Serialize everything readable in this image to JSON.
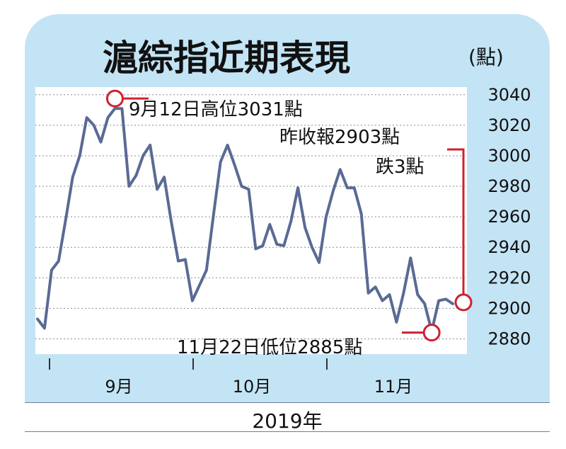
{
  "chart_data": {
    "type": "line",
    "title": "滬綜指近期表現",
    "unit_label": "(點)",
    "year_label": "2019年",
    "x_ticks": [
      "9月",
      "10月",
      "11月"
    ],
    "y_ticks": [
      3040,
      3020,
      3000,
      2980,
      2960,
      2940,
      2920,
      2900,
      2880
    ],
    "ylim": [
      2870,
      3045
    ],
    "grid": "horizontal-dotted",
    "line_color": "#5a6a94",
    "marker_color": "#d0202e",
    "series": [
      {
        "values": [
          2893,
          2887,
          2925,
          2931,
          2958,
          2986,
          3000,
          3025,
          3020,
          3009,
          3025,
          3031,
          3031,
          2980,
          2987,
          3000,
          3007,
          2978,
          2986,
          2957,
          2931,
          2932,
          2905,
          2915,
          2925,
          2961,
          2996,
          3007,
          2994,
          2980,
          2978,
          2939,
          2941,
          2955,
          2942,
          2941,
          2957,
          2979,
          2953,
          2940,
          2930,
          2960,
          2977,
          2991,
          2979,
          2979,
          2962,
          2910,
          2914,
          2905,
          2909,
          2891,
          2910,
          2933,
          2909,
          2903,
          2885,
          2905,
          2906,
          2903
        ]
      }
    ],
    "annotations": {
      "high": "9月12日高位3031點",
      "low": "11月22日低位2885點",
      "close_line1": "昨收報2903點",
      "close_line2": "跌3點"
    }
  }
}
